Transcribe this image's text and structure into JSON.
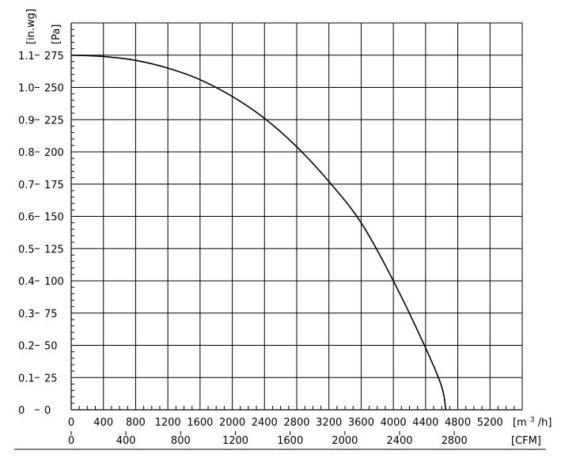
{
  "chart_data": {
    "type": "line",
    "x_unit_primary": "[m",
    "x_unit_primary_sup": "3",
    "x_unit_primary_tail": "/h]",
    "x_unit_secondary": "[CFM]",
    "y_unit_primary": "[Pa]",
    "y_unit_secondary": "[in.wg]",
    "x_ticks_primary": [
      "0",
      "400",
      "800",
      "1200",
      "1600",
      "2000",
      "2400",
      "2800",
      "3200",
      "3600",
      "4000",
      "4400",
      "4800",
      "5200"
    ],
    "x_ticks_secondary": [
      "0",
      "400",
      "800",
      "1200",
      "1600",
      "2000",
      "2400",
      "2800"
    ],
    "y_ticks_pa": [
      "0",
      "25",
      "50",
      "75",
      "100",
      "125",
      "150",
      "175",
      "200",
      "225",
      "250",
      "275"
    ],
    "y_ticks_inwg": [
      "0",
      "0.1",
      "0.2",
      "0.3",
      "0.4",
      "0.5",
      "0.6",
      "0.7",
      "0.8",
      "0.9",
      "1.0",
      "1.1"
    ],
    "xlim": [
      0,
      5600
    ],
    "ylim": [
      0,
      300
    ],
    "cfm_per_m3h": 0.5886,
    "inwg_per_pa": 0.004,
    "grid": true,
    "series": [
      {
        "x": [
          0,
          400,
          800,
          1200,
          1600,
          2000,
          2400,
          2800,
          3200,
          3600,
          4000,
          4400,
          4600,
          4650
        ],
        "values": [
          275,
          274,
          271,
          265,
          256,
          243,
          226,
          204,
          177,
          145,
          100,
          48,
          18,
          0
        ]
      }
    ]
  }
}
